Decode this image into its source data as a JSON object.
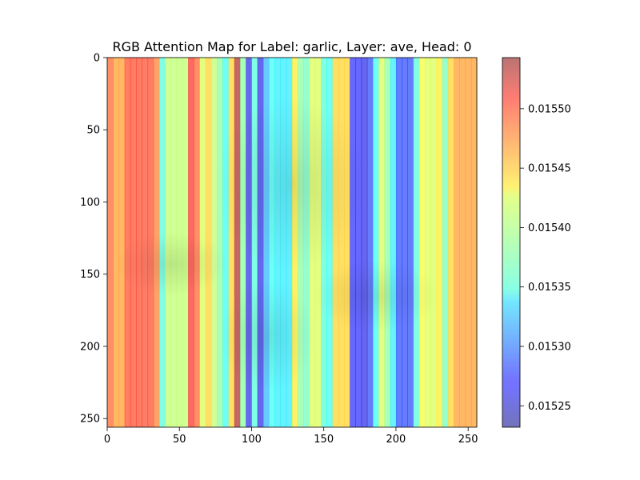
{
  "chart_data": {
    "type": "heatmap",
    "title": "RGB Attention Map for Label: garlic, Layer: ave, Head: 0",
    "xlabel": "",
    "ylabel": "",
    "xlim": [
      0,
      256
    ],
    "ylim": [
      256,
      0
    ],
    "x_ticks": [
      "0",
      "50",
      "100",
      "150",
      "200",
      "250"
    ],
    "y_ticks": [
      "0",
      "50",
      "100",
      "150",
      "200",
      "250"
    ],
    "colormap": "jet",
    "colorbar": {
      "range": [
        0.015523,
        0.015543
      ],
      "range_full": [
        0.01523,
        0.01554
      ],
      "ticks": [
        "0.01525",
        "0.01530",
        "0.01535",
        "0.01540",
        "0.01545",
        "0.01550"
      ],
      "tick_values": [
        0.01525,
        0.0153,
        0.01535,
        0.0154,
        0.01545,
        0.0155
      ]
    },
    "column_width": 4,
    "column_values": [
      0.01548,
      0.01546,
      0.01546,
      0.01549,
      0.01549,
      0.01549,
      0.01549,
      0.01549,
      0.01547,
      0.01536,
      0.0154,
      0.0154,
      0.0154,
      0.0154,
      0.0155,
      0.01548,
      0.01541,
      0.01544,
      0.0154,
      0.01538,
      0.01535,
      0.01544,
      0.01553,
      0.01538,
      0.01526,
      0.01536,
      0.01526,
      0.01532,
      0.01535,
      0.01534,
      0.01534,
      0.01534,
      0.01543,
      0.01538,
      0.01537,
      0.01541,
      0.01541,
      0.01536,
      0.01535,
      0.01544,
      0.01544,
      0.01544,
      0.01527,
      0.01527,
      0.01526,
      0.01528,
      0.01535,
      0.01541,
      0.01538,
      0.01534,
      0.01528,
      0.01528,
      0.01528,
      0.01536,
      0.01542,
      0.01541,
      0.01541,
      0.01543,
      0.01537,
      0.01544,
      0.01546,
      0.01546,
      0.01546,
      0.01546
    ]
  }
}
